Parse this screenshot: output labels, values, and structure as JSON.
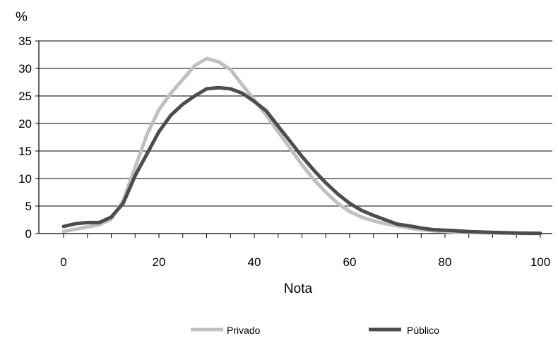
{
  "chart_data": {
    "type": "line",
    "title": "",
    "xlabel": "Nota",
    "ylabel": "%",
    "xlim": [
      0,
      100
    ],
    "ylim": [
      0,
      35
    ],
    "xticks": [
      0,
      20,
      40,
      60,
      80,
      100
    ],
    "yticks": [
      0,
      5,
      10,
      15,
      20,
      25,
      30,
      35
    ],
    "grid": "horizontal",
    "legend_position": "bottom",
    "series": [
      {
        "name": "Privado",
        "color": "#c0c0c0",
        "x": [
          0,
          2.5,
          5,
          7.5,
          10,
          12.5,
          15,
          17.5,
          20,
          22.5,
          25,
          27.5,
          30,
          32.5,
          35,
          37.5,
          40,
          42.5,
          45,
          47.5,
          50,
          52.5,
          55,
          57.5,
          60,
          62.5,
          65,
          67.5,
          70,
          72.5,
          75,
          77.5,
          80,
          82.5,
          85,
          87.5,
          90,
          92.5,
          95,
          97.5,
          100
        ],
        "values": [
          0.4,
          0.8,
          1.2,
          1.6,
          2.6,
          6,
          12,
          18,
          22.5,
          25.5,
          28,
          30.5,
          31.8,
          31.2,
          29.8,
          27,
          24.3,
          21.5,
          18.5,
          15.5,
          12.5,
          9.8,
          7.5,
          5.5,
          4,
          3,
          2.3,
          1.8,
          1.4,
          1,
          0.7,
          0.5,
          0.35,
          0.25,
          0.2,
          0.15,
          0.1,
          0.08,
          0.05,
          0.03,
          0.02
        ]
      },
      {
        "name": "Público",
        "color": "#4d4d4d",
        "x": [
          0,
          2.5,
          5,
          7.5,
          10,
          12.5,
          15,
          17.5,
          20,
          22.5,
          25,
          27.5,
          30,
          32.5,
          35,
          37.5,
          40,
          42.5,
          45,
          47.5,
          50,
          52.5,
          55,
          57.5,
          60,
          62.5,
          65,
          67.5,
          70,
          72.5,
          75,
          77.5,
          80,
          82.5,
          85,
          87.5,
          90,
          92.5,
          95,
          97.5,
          100
        ],
        "values": [
          1.3,
          1.8,
          2,
          2,
          3,
          5.5,
          10.5,
          14.5,
          18.5,
          21.5,
          23.5,
          25,
          26.3,
          26.5,
          26.3,
          25.5,
          24,
          22.3,
          19.5,
          16.8,
          14,
          11.5,
          9.2,
          7.2,
          5.5,
          4.2,
          3.3,
          2.5,
          1.7,
          1.4,
          1,
          0.7,
          0.6,
          0.5,
          0.35,
          0.3,
          0.2,
          0.15,
          0.1,
          0.06,
          0.04
        ]
      }
    ]
  }
}
